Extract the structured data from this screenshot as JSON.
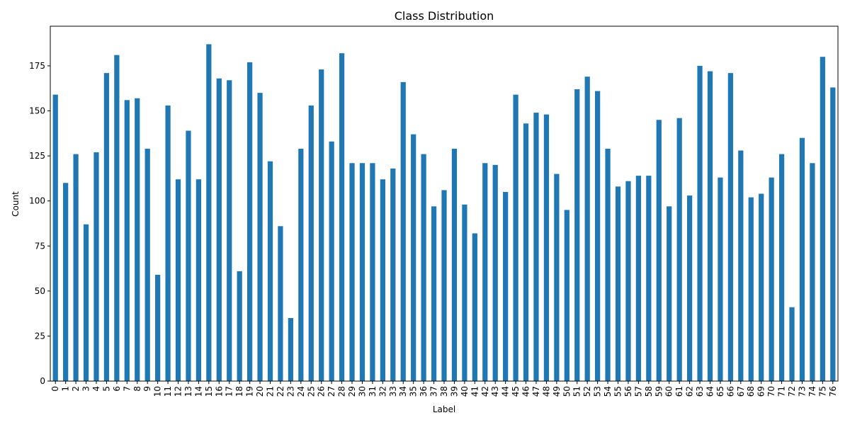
{
  "chart_data": {
    "type": "bar",
    "title": "Class Distribution",
    "xlabel": "Label",
    "ylabel": "Count",
    "ylim": [
      0,
      197
    ],
    "yticks": [
      0,
      25,
      50,
      75,
      100,
      125,
      150,
      175
    ],
    "categories": [
      "0",
      "1",
      "2",
      "3",
      "4",
      "5",
      "6",
      "7",
      "8",
      "9",
      "10",
      "11",
      "12",
      "13",
      "14",
      "15",
      "16",
      "17",
      "18",
      "19",
      "20",
      "21",
      "22",
      "23",
      "24",
      "25",
      "26",
      "27",
      "28",
      "29",
      "30",
      "31",
      "32",
      "33",
      "34",
      "35",
      "36",
      "37",
      "38",
      "39",
      "40",
      "41",
      "42",
      "43",
      "44",
      "45",
      "46",
      "47",
      "48",
      "49",
      "50",
      "51",
      "52",
      "53",
      "54",
      "55",
      "56",
      "57",
      "58",
      "59",
      "60",
      "61",
      "62",
      "63",
      "64",
      "65",
      "66",
      "67",
      "68",
      "69",
      "70",
      "71",
      "72",
      "73",
      "74",
      "75",
      "76"
    ],
    "values": [
      159,
      110,
      126,
      87,
      127,
      171,
      181,
      156,
      157,
      129,
      59,
      153,
      112,
      139,
      112,
      187,
      168,
      167,
      61,
      177,
      160,
      122,
      86,
      35,
      129,
      153,
      173,
      133,
      182,
      121,
      121,
      121,
      112,
      118,
      166,
      137,
      126,
      97,
      106,
      129,
      98,
      82,
      121,
      120,
      105,
      159,
      143,
      149,
      148,
      115,
      95,
      162,
      169,
      161,
      129,
      108,
      111,
      114,
      114,
      145,
      97,
      146,
      103,
      175,
      172,
      113,
      171,
      128,
      102,
      104,
      113,
      126,
      41,
      135,
      121,
      180,
      163
    ],
    "color": "#1f77b4",
    "grid": false
  }
}
